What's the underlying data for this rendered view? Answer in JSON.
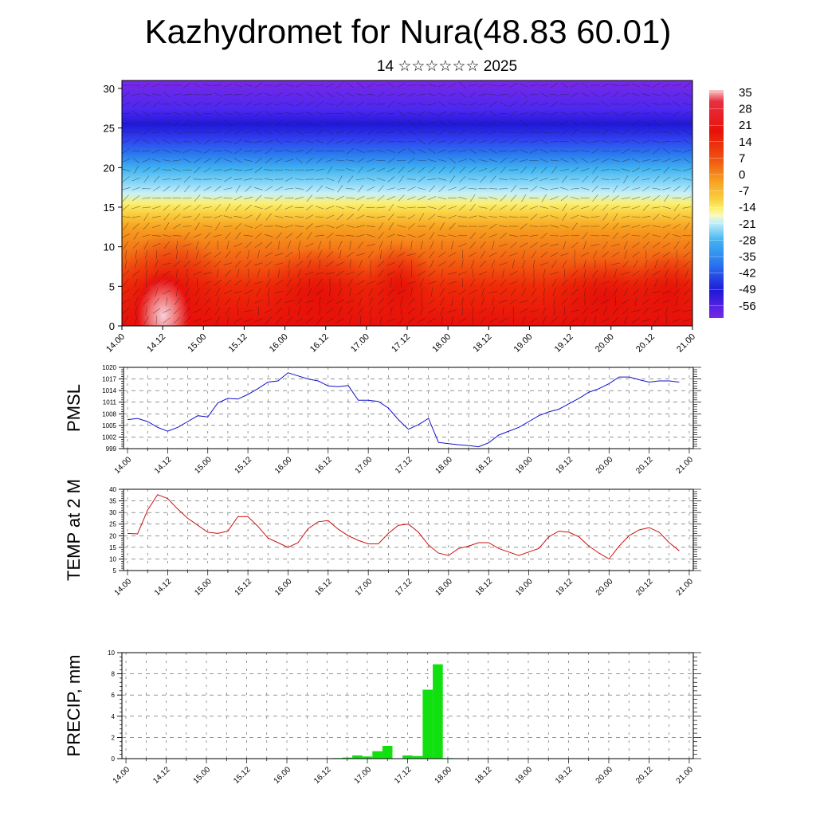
{
  "title": "Kazhydromet for Nura(48.83 60.01)",
  "subtitle": "14 ☆☆☆☆☆☆ 2025",
  "time_labels": [
    "14.00",
    "14.12",
    "15.00",
    "15.12",
    "16.00",
    "16.12",
    "17.00",
    "17.12",
    "18.00",
    "18.12",
    "19.00",
    "19.12",
    "20.00",
    "20.12",
    "21.00"
  ],
  "chart_data": [
    {
      "type": "heatmap",
      "title": "",
      "xlabel": "",
      "ylabel": "",
      "x": [
        "14.00",
        "14.12",
        "15.00",
        "15.12",
        "16.00",
        "16.12",
        "17.00",
        "17.12",
        "18.00",
        "18.12",
        "19.00",
        "19.12",
        "20.00",
        "20.12",
        "21.00"
      ],
      "yticks": [
        0,
        5,
        10,
        15,
        20,
        25,
        30
      ],
      "ylim": [
        0,
        31
      ],
      "colorbar": {
        "labels": [
          "35",
          "28",
          "21",
          "14",
          "7",
          "0",
          "-7",
          "-14",
          "-21",
          "-28",
          "-35",
          "-42",
          "-49",
          "-56"
        ],
        "range": [
          -63,
          42
        ]
      },
      "overlay": "wind barbs",
      "colors": {
        "hot": "#e8100a",
        "warm": "#f7a020",
        "neutral": "#fbf070",
        "cool": "#41b4f0",
        "cold": "#4028f0",
        "coldest": "#7a28e8"
      }
    },
    {
      "type": "line",
      "ylabel": "PMSL",
      "yticks": [
        999,
        1002,
        1005,
        1008,
        1011,
        1014,
        1017,
        1020
      ],
      "ylim": [
        999,
        1020
      ],
      "xlim": [
        -0.2,
        28.2
      ],
      "color": "#1010cc",
      "x": [
        0,
        0.5,
        1,
        1.5,
        2,
        2.5,
        3,
        3.5,
        4,
        4.5,
        5,
        5.5,
        6,
        6.5,
        7,
        7.5,
        8,
        8.5,
        9,
        9.5,
        10,
        10.5,
        11,
        11.5,
        12,
        12.5,
        13,
        13.5,
        14,
        14.5,
        15,
        15.5,
        16,
        16.5,
        17,
        17.5,
        18,
        18.5,
        19,
        19.5,
        20,
        20.5,
        21,
        21.5,
        22,
        22.5,
        23,
        23.5,
        24,
        24.5,
        25,
        25.5,
        26,
        26.5,
        27,
        27.5
      ],
      "y": [
        1006.5,
        1006.8,
        1006,
        1004.5,
        1003.5,
        1004.5,
        1006,
        1007.5,
        1007.2,
        1010.8,
        1012,
        1011.8,
        1013,
        1014.5,
        1016.2,
        1016.5,
        1018.6,
        1017.8,
        1017,
        1016.5,
        1015.2,
        1015,
        1015.3,
        1011.5,
        1011.5,
        1011.2,
        1009.5,
        1006.5,
        1004,
        1005.2,
        1006.8,
        1000.6,
        1000.3,
        1000,
        999.8,
        999.5,
        1000.5,
        1002.5,
        1003.5,
        1004.5,
        1006,
        1007.5,
        1008.5,
        1009.2,
        1010.6,
        1012,
        1013.6,
        1014.5,
        1015.8,
        1017.5,
        1017.5,
        1016.8,
        1016.2,
        1016.5,
        1016.5,
        1016.2
      ]
    },
    {
      "type": "line",
      "ylabel": "TEMP at 2 M",
      "yticks": [
        5,
        10,
        15,
        20,
        25,
        30,
        35,
        40
      ],
      "ylim": [
        5,
        40
      ],
      "xlim": [
        -0.2,
        28.2
      ],
      "color": "#cc1010",
      "x": [
        0,
        0.5,
        1,
        1.5,
        2,
        2.5,
        3,
        3.5,
        4,
        4.5,
        5,
        5.5,
        6,
        6.5,
        7,
        7.5,
        8,
        8.5,
        9,
        9.5,
        10,
        10.5,
        11,
        11.5,
        12,
        12.5,
        13,
        13.5,
        14,
        14.5,
        15,
        15.5,
        16,
        16.5,
        17,
        17.5,
        18,
        18.5,
        19,
        19.5,
        20,
        20.5,
        21,
        21.5,
        22,
        22.5,
        23,
        23.5,
        24,
        24.5,
        25,
        25.5,
        26,
        26.5,
        27,
        27.5
      ],
      "y": [
        21,
        20.8,
        31,
        37.7,
        36,
        31.5,
        27.5,
        24.5,
        21.5,
        21,
        22,
        28.2,
        28.2,
        24,
        19,
        17,
        15,
        17,
        23,
        26,
        26.5,
        22.8,
        20,
        18,
        16.5,
        16.5,
        21,
        24.5,
        25,
        21.5,
        16,
        12.5,
        11.5,
        14.5,
        15.5,
        17,
        17,
        14.5,
        13,
        11.5,
        13,
        14.5,
        19.5,
        22,
        21.5,
        19.5,
        15.5,
        12.5,
        10,
        15.5,
        20,
        22.5,
        23.5,
        21.5,
        17,
        13.5
      ]
    },
    {
      "type": "bar",
      "ylabel": "PRECIP, mm",
      "yticks": [
        0,
        2,
        4,
        6,
        8,
        10
      ],
      "ylim": [
        0,
        10
      ],
      "xlim": [
        -0.2,
        28.2
      ],
      "color": "#10e010",
      "x": [
        10.5,
        11,
        11.5,
        12,
        12.5,
        13,
        13.5,
        14,
        14.5,
        15,
        15.5,
        16,
        16.5,
        17,
        17.5,
        18,
        18.5,
        19,
        19.5,
        20
      ],
      "values": [
        0.05,
        0.1,
        0.3,
        0.2,
        0.7,
        1.2,
        0,
        0.3,
        0.25,
        6.5,
        8.9,
        0.05,
        0,
        0,
        0,
        0,
        0,
        0,
        0,
        0
      ]
    }
  ]
}
